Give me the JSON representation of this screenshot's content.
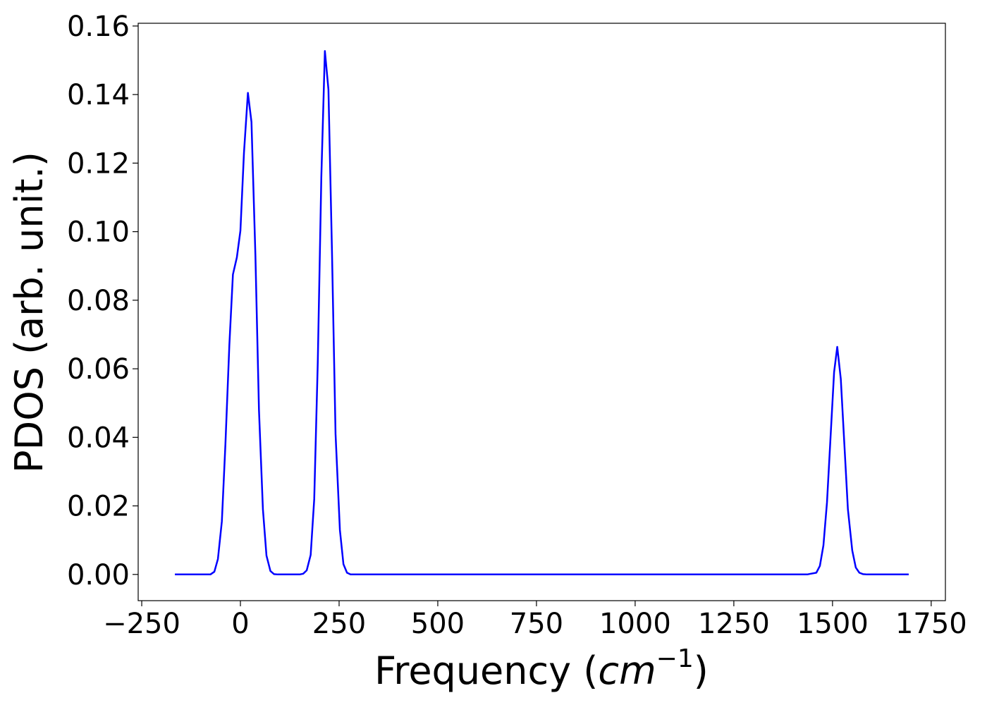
{
  "chart_data": {
    "type": "line",
    "xlabel": [
      "Frequency (",
      "cm",
      "−1",
      ")"
    ],
    "ylabel": "PDOS (arb. unit.)",
    "xlim": [
      -259,
      1786
    ],
    "ylim": [
      -0.00765,
      0.1608
    ],
    "xticks": [
      {
        "value": -250,
        "label": "−250"
      },
      0,
      250,
      500,
      750,
      1000,
      1250,
      1500,
      1750
    ],
    "yticks": [
      {
        "value": 0,
        "label": "0.00"
      },
      {
        "value": 0.02,
        "label": "0.02"
      },
      {
        "value": 0.04,
        "label": "0.04"
      },
      {
        "value": 0.06,
        "label": "0.06"
      },
      {
        "value": 0.08,
        "label": "0.08"
      },
      {
        "value": 0.1,
        "label": "0.10"
      },
      {
        "value": 0.12,
        "label": "0.12"
      },
      {
        "value": 0.14,
        "label": "0.14"
      },
      {
        "value": 0.16,
        "label": "0.16"
      }
    ],
    "grid": false,
    "x": [
      -166,
      -76,
      -66,
      -57,
      -47,
      -38,
      -28,
      -19,
      -9,
      0,
      9,
      19,
      28,
      38,
      47,
      57,
      66,
      76,
      85,
      95,
      150,
      159,
      168,
      178,
      187,
      196,
      205,
      214,
      223,
      232,
      241,
      252,
      261,
      270,
      279,
      1436,
      1445,
      1459,
      1468,
      1477,
      1486,
      1495,
      1504,
      1512,
      1521,
      1530,
      1539,
      1550,
      1559,
      1568,
      1577,
      1588,
      1693
    ],
    "series": [
      {
        "color": "#0000ff",
        "values": [
          0,
          0,
          0.0008,
          0.0045,
          0.0155,
          0.038,
          0.067,
          0.0875,
          0.0925,
          0.1003,
          0.123,
          0.1405,
          0.132,
          0.093,
          0.048,
          0.019,
          0.0055,
          0.001,
          0.0001,
          0,
          0,
          0.0002,
          0.0012,
          0.0057,
          0.022,
          0.062,
          0.116,
          0.1527,
          0.1415,
          0.094,
          0.041,
          0.013,
          0.003,
          0.0005,
          0,
          0,
          0.0002,
          0.0005,
          0.0025,
          0.0085,
          0.021,
          0.04,
          0.059,
          0.0664,
          0.057,
          0.038,
          0.019,
          0.007,
          0.002,
          0.0005,
          0.0001,
          0,
          0
        ]
      }
    ]
  }
}
